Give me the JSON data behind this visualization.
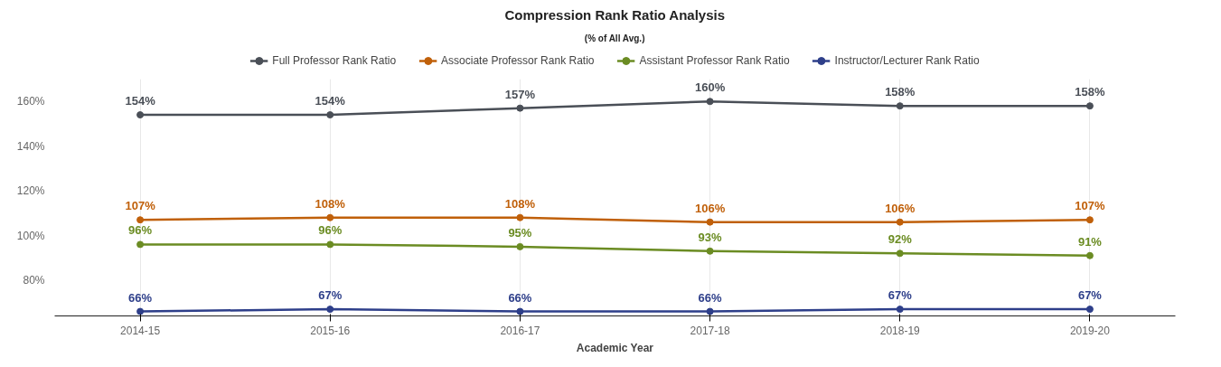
{
  "chart_data": {
    "type": "line",
    "title": "Compression Rank Ratio Analysis",
    "subtitle": "(% of All Avg.)",
    "xlabel": "Academic Year",
    "categories": [
      "2014-15",
      "2015-16",
      "2016-17",
      "2017-18",
      "2018-19",
      "2019-20"
    ],
    "series": [
      {
        "name": "Full Professor Rank Ratio",
        "color": "#4a4f57",
        "values": [
          154,
          154,
          157,
          160,
          158,
          158
        ],
        "value_labels": [
          "154%",
          "154%",
          "157%",
          "160%",
          "158%",
          "158%"
        ]
      },
      {
        "name": "Associate Professor Rank Ratio",
        "color": "#c0600a",
        "values": [
          107,
          108,
          108,
          106,
          106,
          107
        ],
        "value_labels": [
          "107%",
          "108%",
          "108%",
          "106%",
          "106%",
          "107%"
        ]
      },
      {
        "name": "Assistant Professor Rank Ratio",
        "color": "#6b8c23",
        "values": [
          96,
          96,
          95,
          93,
          92,
          91
        ],
        "value_labels": [
          "96%",
          "96%",
          "95%",
          "93%",
          "92%",
          "91%"
        ]
      },
      {
        "name": "Instructor/Lecturer Rank Ratio",
        "color": "#2e3f8a",
        "values": [
          66,
          67,
          66,
          66,
          67,
          67
        ],
        "value_labels": [
          "66%",
          "67%",
          "66%",
          "66%",
          "67%",
          "67%"
        ]
      }
    ],
    "ylim": [
      64,
      170
    ],
    "yticks": [
      {
        "value": 80,
        "label": "80%"
      },
      {
        "value": 100,
        "label": "100%"
      },
      {
        "value": 120,
        "label": "120%"
      },
      {
        "value": 140,
        "label": "140%"
      },
      {
        "value": 160,
        "label": "160%"
      }
    ],
    "grid": "x",
    "legend": "top",
    "marker": "circle",
    "line_style": "solid"
  }
}
